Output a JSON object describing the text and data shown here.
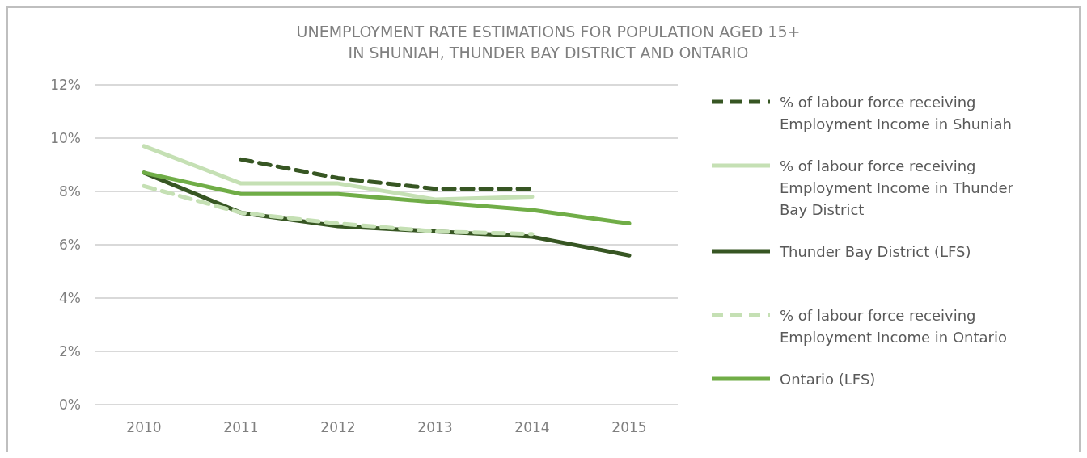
{
  "chart_data": {
    "type": "line",
    "title": "UNEMPLOYMENT RATE ESTIMATIONS FOR POPULATION AGED 15+\nIN SHUNIAH, THUNDER BAY DISTRICT AND ONTARIO",
    "categories": [
      "2010",
      "2011",
      "2012",
      "2013",
      "2014",
      "2015"
    ],
    "ylim": [
      0,
      12
    ],
    "yticks": [
      {
        "value": 0,
        "label": "0%"
      },
      {
        "value": 2,
        "label": "2%"
      },
      {
        "value": 4,
        "label": "4%"
      },
      {
        "value": 6,
        "label": "6%"
      },
      {
        "value": 8,
        "label": "8%"
      },
      {
        "value": 10,
        "label": "10%"
      },
      {
        "value": 12,
        "label": "12%"
      }
    ],
    "grid": "y",
    "legend": "right",
    "series": [
      {
        "name": "% of labour force receiving Employment Income in Shuniah",
        "color": "#375623",
        "line_style": "dashed",
        "values": [
          null,
          9.2,
          8.5,
          8.1,
          8.1,
          null
        ]
      },
      {
        "name": "% of labour force receiving Employment Income in Thunder Bay District",
        "color": "#c5e0b4",
        "line_style": "solid",
        "values": [
          9.7,
          8.3,
          8.3,
          7.7,
          7.8,
          null
        ]
      },
      {
        "name": "Thunder Bay District (LFS)",
        "color": "#375623",
        "line_style": "solid",
        "values": [
          8.7,
          7.2,
          6.7,
          6.5,
          6.3,
          5.6
        ]
      },
      {
        "name": "% of labour force receiving Employment Income in Ontario",
        "color": "#c5e0b4",
        "line_style": "dashed",
        "values": [
          8.2,
          7.2,
          6.8,
          6.5,
          6.4,
          null
        ]
      },
      {
        "name": "Ontario (LFS)",
        "color": "#70ad47",
        "line_style": "solid",
        "values": [
          8.7,
          7.9,
          7.9,
          7.6,
          7.3,
          6.8
        ]
      }
    ]
  }
}
